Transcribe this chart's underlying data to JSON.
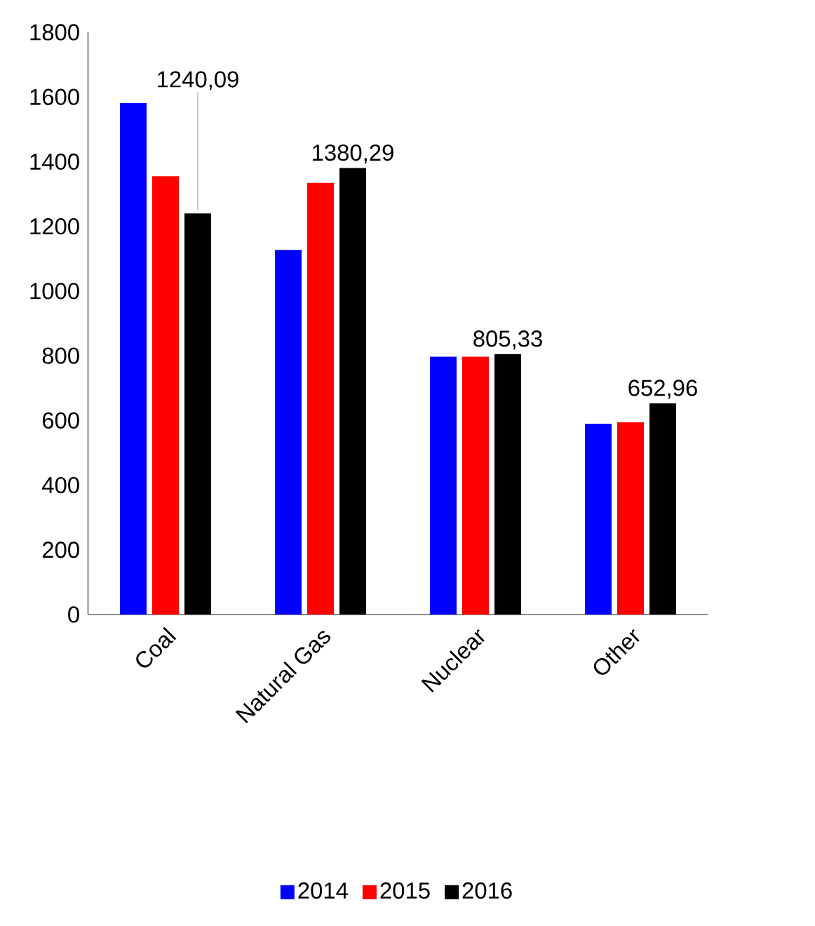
{
  "chart_data": {
    "type": "bar",
    "categories": [
      "Coal",
      "Natural Gas",
      "Nuclear",
      "Other"
    ],
    "series": [
      {
        "name": "2014",
        "color": "#0000ff",
        "values": [
          1581,
          1127,
          797,
          590
        ]
      },
      {
        "name": "2015",
        "color": "#ff0000",
        "values": [
          1355,
          1334,
          797,
          594
        ]
      },
      {
        "name": "2016",
        "color": "#000000",
        "values": [
          1240.09,
          1380.29,
          805.33,
          652.96
        ],
        "value_labels": [
          "1240,09",
          "1380,29",
          "805,33",
          "652,96"
        ]
      }
    ],
    "ylim": [
      0,
      1800
    ],
    "yticks": [
      0,
      200,
      400,
      600,
      800,
      1000,
      1200,
      1400,
      1600,
      1800
    ],
    "grid": false,
    "legend": "bottom"
  }
}
